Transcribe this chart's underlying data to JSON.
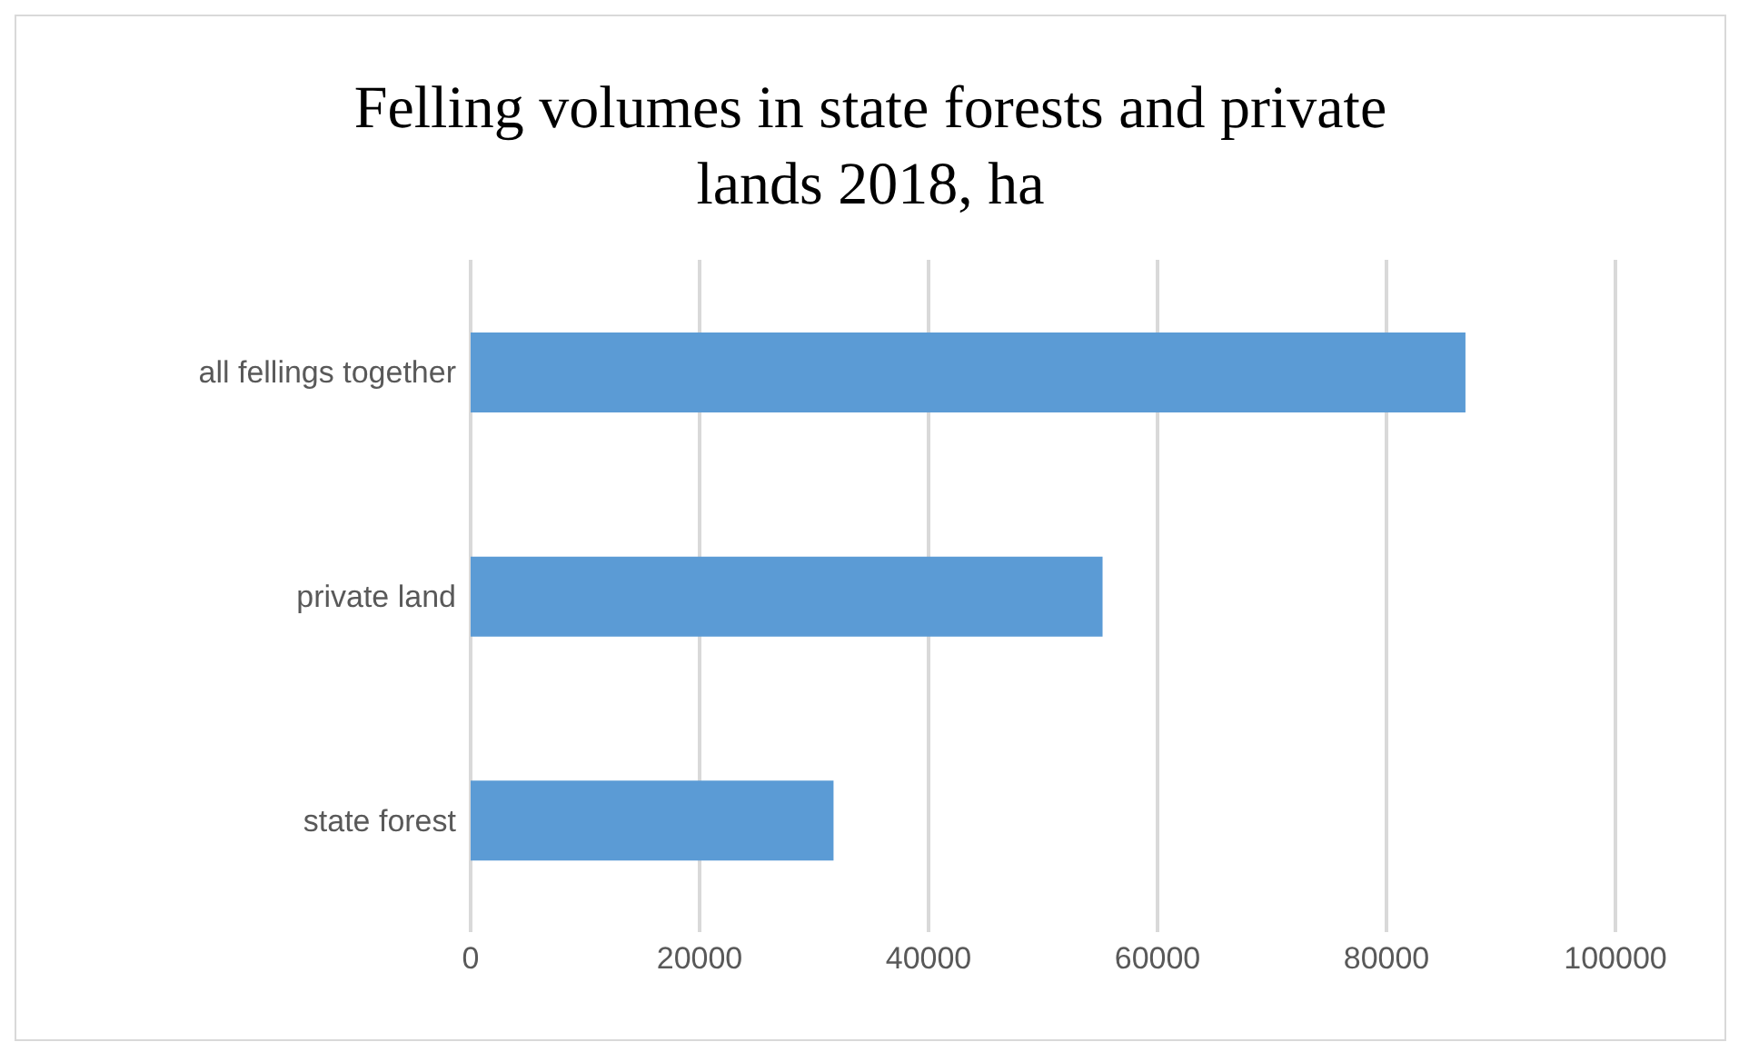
{
  "chart_data": {
    "type": "bar",
    "orientation": "horizontal",
    "title": "Felling volumes in state forests and private lands 2018, ha",
    "categories": [
      "all fellings together",
      "private land",
      "state forest"
    ],
    "values": [
      86900,
      55200,
      31700
    ],
    "color": "#5b9bd5",
    "xlim": [
      0,
      100000
    ],
    "xticks": [
      0,
      20000,
      40000,
      60000,
      80000,
      100000
    ],
    "grid": "x"
  }
}
